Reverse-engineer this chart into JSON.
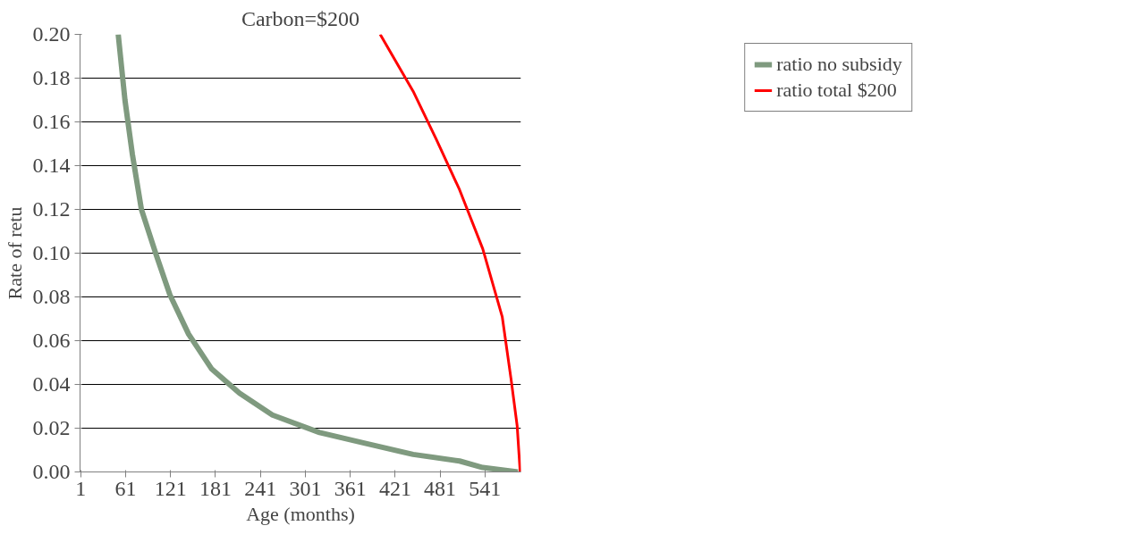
{
  "chart_data": {
    "type": "line",
    "title": "Carbon=$200",
    "xlabel": "Age (months)",
    "ylabel": "Rate of retu",
    "xlim": [
      0,
      589
    ],
    "xticks": [
      1,
      61,
      121,
      181,
      241,
      301,
      361,
      421,
      481,
      541
    ],
    "ylim": [
      0,
      0.2
    ],
    "yticks": [
      {
        "value": 0,
        "label": "0.00"
      },
      {
        "value": 0.02,
        "label": "0.02"
      },
      {
        "value": 0.04,
        "label": "0.04"
      },
      {
        "value": 0.06,
        "label": "0.06"
      },
      {
        "value": 0.08,
        "label": "0.08"
      },
      {
        "value": 0.1,
        "label": "0.10"
      },
      {
        "value": 0.12,
        "label": "0.12"
      },
      {
        "value": 0.14,
        "label": "0.14"
      },
      {
        "value": 0.16,
        "label": "0.16"
      },
      {
        "value": 0.18,
        "label": "0.18"
      },
      {
        "value": 0.2,
        "label": "0.20"
      }
    ],
    "grid": "y",
    "legend": "top right",
    "series": [
      {
        "name": "ratio no subsidy",
        "color": "#7f9a7f",
        "x": [
          51,
          60,
          70,
          82,
          101,
          120,
          145,
          176,
          213,
          257,
          320,
          382,
          445,
          507,
          538,
          585
        ],
        "values": [
          0.2,
          0.17,
          0.145,
          0.12,
          0.1,
          0.081,
          0.063,
          0.047,
          0.036,
          0.026,
          0.018,
          0.013,
          0.008,
          0.005,
          0.002,
          0
        ]
      },
      {
        "name": "ratio total $200",
        "color": "#ff0000",
        "x": [
          401,
          445,
          476,
          507,
          538,
          564,
          576,
          584,
          588
        ],
        "values": [
          0.2,
          0.174,
          0.152,
          0.129,
          0.102,
          0.071,
          0.042,
          0.021,
          0
        ]
      }
    ]
  }
}
